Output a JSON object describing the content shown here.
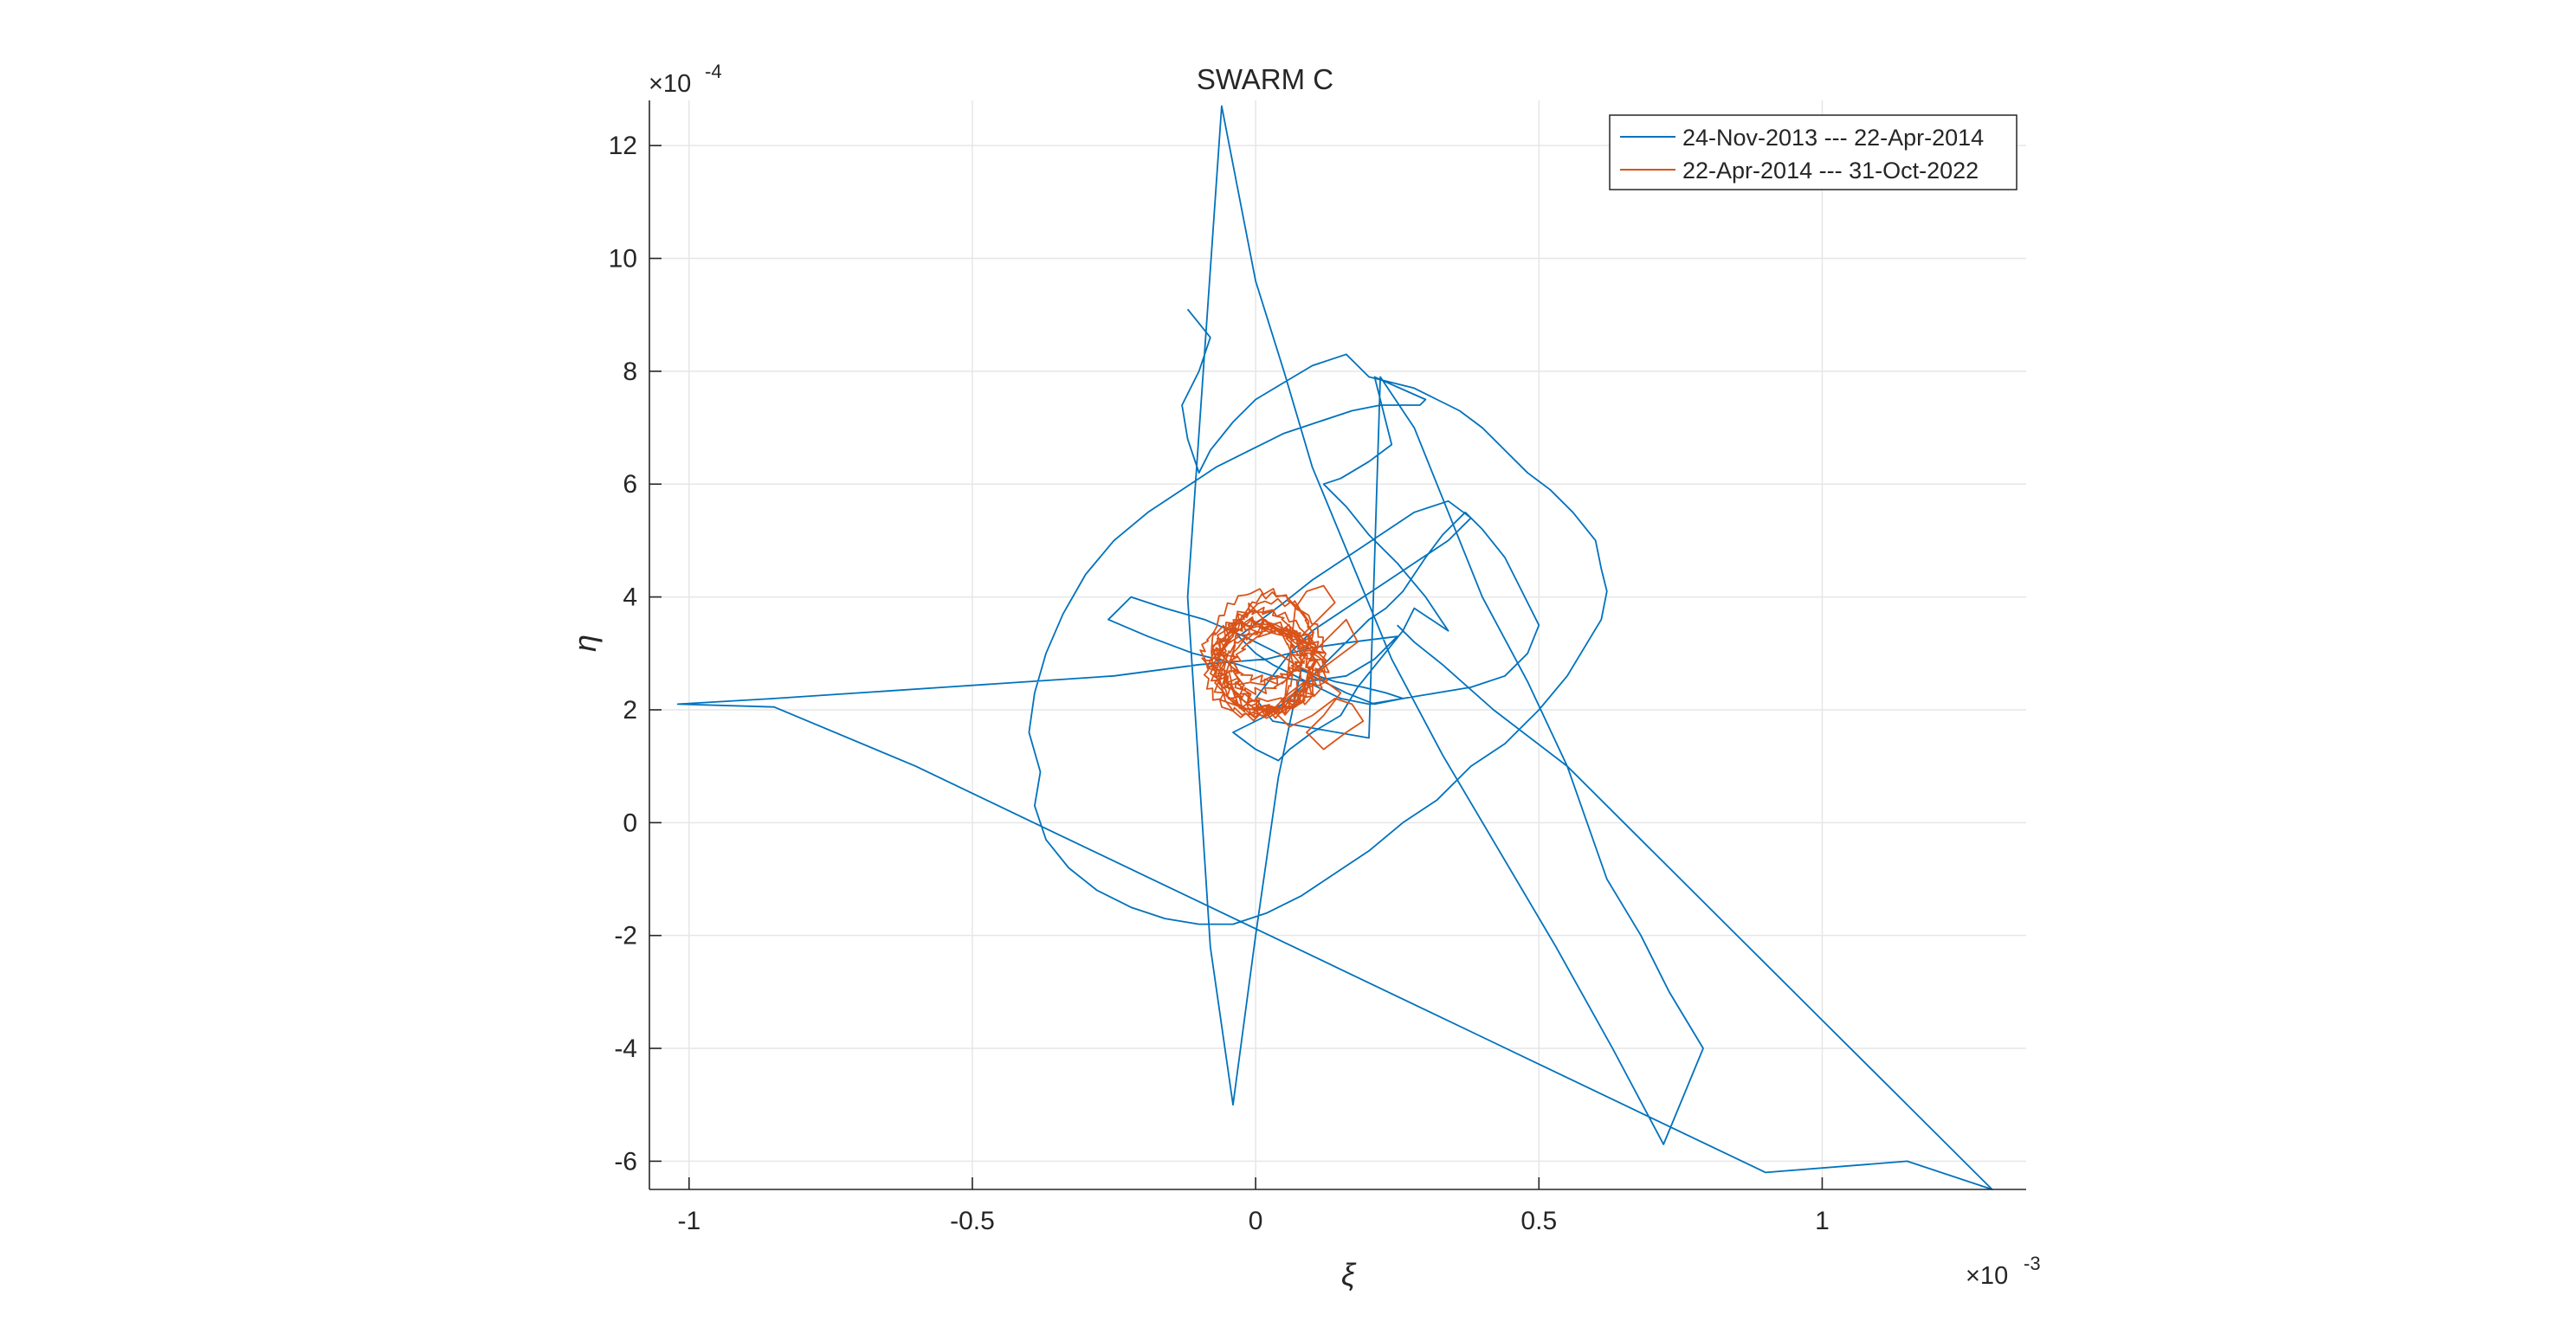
{
  "chart_data": {
    "type": "line",
    "title": "SWARM C",
    "xlabel": "ξ",
    "ylabel": "η",
    "x_exponent_label": "×10",
    "x_exponent_power": "-3",
    "y_exponent_label": "×10",
    "y_exponent_power": "-4",
    "xlim": [
      -0.00107,
      0.00136
    ],
    "ylim": [
      -0.00065,
      0.00128
    ],
    "xticks": [
      -0.001,
      -0.0005,
      0,
      0.0005,
      0.001
    ],
    "xtick_labels": [
      "-1",
      "-0.5",
      "0",
      "0.5",
      "1"
    ],
    "yticks": [
      -0.0006,
      -0.0004,
      -0.0002,
      0,
      0.0002,
      0.0004,
      0.0006,
      0.0008,
      0.001,
      0.0012
    ],
    "ytick_labels": [
      "-6",
      "-4",
      "-2",
      "0",
      "2",
      "4",
      "6",
      "8",
      "10",
      "12"
    ],
    "grid": true,
    "legend_position": "top-right",
    "colors": {
      "series1": "#0072BD",
      "series2": "#D95319",
      "axis": "#262626",
      "grid": "#e6e6e6"
    },
    "series": [
      {
        "name": "24-Nov-2013 --- 22-Apr-2014",
        "x": [
          -0.00012,
          -8e-05,
          -0.0001,
          -0.00013,
          -0.00012,
          -0.0001,
          -8e-05,
          -4e-05,
          0.0,
          5e-05,
          0.0001,
          0.00016,
          0.0002,
          0.00024,
          0.00028,
          0.00032,
          0.00036,
          0.0004,
          0.00044,
          0.00048,
          0.00052,
          0.00056,
          0.0006,
          0.00061,
          0.00062,
          0.00061,
          0.00058,
          0.00055,
          0.0005,
          0.00044,
          0.00038,
          0.00032,
          0.00026,
          0.0002,
          0.00014,
          8e-05,
          2e-05,
          -4e-05,
          -0.0001,
          -0.00016,
          -0.00022,
          -0.00028,
          -0.00033,
          -0.00037,
          -0.00039,
          -0.00038,
          -0.0004,
          -0.00039,
          -0.00037,
          -0.00034,
          -0.0003,
          -0.00025,
          -0.00019,
          -0.00013,
          -7e-05,
          -1e-05,
          5e-05,
          0.00011,
          0.00017,
          0.00022,
          0.00026,
          0.00029,
          0.0003,
          0.00021,
          0.00024,
          0.0002,
          0.00015,
          0.00012,
          0.00016,
          0.0002,
          0.00025,
          0.0003,
          0.00034,
          0.00028,
          0.00026,
          0.00022,
          0.00018,
          0.00015,
          0.0001,
          6e-05,
          4e-05,
          0.0,
          -4e-05,
          2e-05,
          6e-05,
          0.0001,
          0.00014,
          0.00017,
          0.0002,
          0.00023,
          0.00026,
          0.00028,
          0.0003,
          0.00033,
          0.00037,
          0.0004,
          0.00044,
          0.00047,
          0.0005,
          0.00048,
          0.00044,
          0.00038,
          0.00032,
          0.00026,
          0.0002,
          0.00015,
          0.00011,
          7e-05,
          3e-05,
          0.0,
          -3e-05,
          1e-05,
          5e-05,
          0.0001,
          0.00016,
          0.00022,
          0.00028,
          0.00034,
          0.00038,
          0.00034,
          0.00028,
          0.00022,
          0.00016,
          0.0001,
          6e-05,
          3e-05,
          0.0,
          3e-05,
          0.0002,
          0.00022,
          0.00028,
          0.00034,
          0.0004,
          0.00048,
          0.00055,
          0.00062,
          0.00068,
          0.00073,
          0.00079,
          0.00072,
          0.00063,
          0.00053,
          0.00043,
          0.00033,
          0.00024,
          0.00017,
          0.0001,
          5e-05,
          0.0,
          -6e-05,
          -0.00012,
          -8e-05,
          -4e-05,
          0.0,
          4e-05,
          8e-05,
          0.00011,
          0.00014,
          0.00019,
          0.00023,
          0.00026,
          0.00021,
          0.00016,
          0.0001,
          4e-05,
          -2e-05,
          -9e-05,
          -0.00016,
          -0.00022,
          -0.00026,
          -0.00019,
          -0.00011,
          -3e-05,
          3e-05,
          9e-05,
          0.00016,
          0.00021,
          0.00025,
          0.00017,
          0.0001,
          2e-05,
          -0.0001,
          -0.00025,
          -0.0004,
          -0.00055,
          -0.0007,
          -0.00085,
          -0.00102,
          -0.00085,
          -0.0006,
          -0.00035,
          -0.0001,
          0.00015,
          0.0004,
          0.00065,
          0.0009,
          0.00115,
          0.0013,
          0.00115,
          0.001,
          0.00085,
          0.0007,
          0.00055,
          0.00042,
          0.00033,
          0.00028,
          0.00025
        ],
        "y": [
          0.00091,
          0.00086,
          0.0008,
          0.00074,
          0.00068,
          0.00062,
          0.00066,
          0.00071,
          0.00075,
          0.00078,
          0.00081,
          0.00083,
          0.00079,
          0.00078,
          0.00077,
          0.00075,
          0.00073,
          0.0007,
          0.00066,
          0.00062,
          0.00059,
          0.00055,
          0.0005,
          0.00045,
          0.00041,
          0.00036,
          0.00031,
          0.00026,
          0.0002,
          0.00014,
          0.0001,
          4e-05,
          0.0,
          -5e-05,
          -9e-05,
          -0.00013,
          -0.00016,
          -0.00018,
          -0.00018,
          -0.00017,
          -0.00015,
          -0.00012,
          -8e-05,
          -3e-05,
          3e-05,
          9e-05,
          0.00016,
          0.00023,
          0.0003,
          0.00037,
          0.00044,
          0.0005,
          0.00055,
          0.00059,
          0.00063,
          0.00066,
          0.00069,
          0.00071,
          0.00073,
          0.00074,
          0.00074,
          0.00074,
          0.00075,
          0.00079,
          0.00067,
          0.00064,
          0.00061,
          0.0006,
          0.00056,
          0.00051,
          0.00046,
          0.0004,
          0.00034,
          0.00038,
          0.00034,
          0.00029,
          0.00024,
          0.00019,
          0.00016,
          0.00013,
          0.00011,
          0.00013,
          0.00016,
          0.00019,
          0.00022,
          0.00026,
          0.0003,
          0.00033,
          0.00036,
          0.00038,
          0.00041,
          0.00044,
          0.00047,
          0.00051,
          0.00055,
          0.00052,
          0.00047,
          0.00041,
          0.00035,
          0.0003,
          0.00026,
          0.00024,
          0.00023,
          0.00022,
          0.00021,
          0.00022,
          0.00024,
          0.00026,
          0.00028,
          0.0003,
          0.00033,
          0.00036,
          0.00039,
          0.00043,
          0.00047,
          0.00051,
          0.00055,
          0.00057,
          0.00054,
          0.0005,
          0.00046,
          0.00042,
          0.00038,
          0.00034,
          0.0003,
          0.00026,
          0.00022,
          0.00018,
          0.00015,
          0.00079,
          0.0007,
          0.00055,
          0.0004,
          0.00025,
          0.0001,
          -0.0001,
          -0.0002,
          -0.0003,
          -0.0004,
          -0.00057,
          -0.0004,
          -0.00022,
          -5e-05,
          0.00012,
          0.00029,
          0.00046,
          0.00063,
          0.0008,
          0.00096,
          0.00127,
          0.0004,
          -0.00022,
          -0.0005,
          -0.0002,
          8e-05,
          0.00027,
          0.00026,
          0.00025,
          0.00024,
          0.00023,
          0.00022,
          0.00021,
          0.00023,
          0.00026,
          0.0003,
          0.00033,
          0.00036,
          0.00038,
          0.0004,
          0.00036,
          0.00033,
          0.0003,
          0.00028,
          0.00026,
          0.00025,
          0.00026,
          0.00029,
          0.00033,
          0.00032,
          0.00031,
          0.00029,
          0.00028,
          0.00026,
          0.00025,
          0.00024,
          0.00023,
          0.00022,
          0.00021,
          0.000205,
          0.0001,
          -2e-05,
          -0.00014,
          -0.00026,
          -0.00038,
          -0.0005,
          -0.00062,
          -0.0006,
          -0.00065,
          -0.0005,
          -0.00035,
          -0.0002,
          -5e-05,
          0.0001,
          0.0002,
          0.00028,
          0.00032,
          0.00035
        ]
      },
      {
        "name": "22-Apr-2014 --- 31-Oct-2022",
        "x": [],
        "y": [],
        "orbit_center": [
          1.5e-05,
          0.000285
        ],
        "orbit_radius_x_range": [
          7e-05,
          0.00011
        ],
        "orbit_radius_y_range": [
          5e-05,
          0.00011
        ],
        "orbit_turns": 14,
        "extra_x": [
          7e-05,
          9e-05,
          0.00012,
          0.00014,
          0.00011,
          8e-05,
          0.0001,
          0.00013,
          0.00016,
          0.00018,
          0.00014,
          0.0001,
          6e-05,
          3e-05,
          6e-05,
          0.0001,
          0.00014,
          0.00017,
          0.00019,
          0.00016,
          0.00012,
          9e-05,
          0.00012,
          0.00015,
          0.00011,
          7e-05,
          4e-05
        ],
        "extra_y": [
          0.00038,
          0.00041,
          0.00042,
          0.00039,
          0.00036,
          0.00033,
          0.0003,
          0.00033,
          0.00036,
          0.00032,
          0.00029,
          0.00026,
          0.00023,
          0.0002,
          0.00017,
          0.00019,
          0.00022,
          0.00021,
          0.00018,
          0.00016,
          0.00013,
          0.00016,
          0.00019,
          0.00023,
          0.00026,
          0.00028,
          0.0003
        ]
      }
    ]
  }
}
